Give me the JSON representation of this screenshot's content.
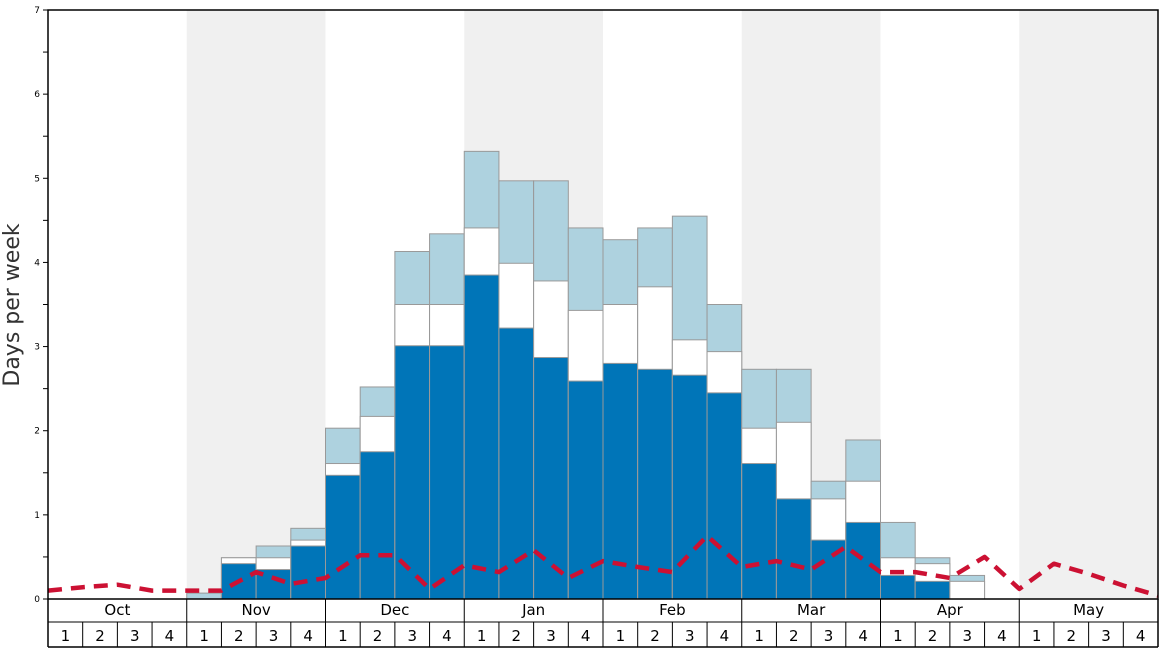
{
  "chart_data": {
    "type": "bar",
    "title": "",
    "ylabel": "Days per week",
    "ylim": [
      0,
      7
    ],
    "yticks": [
      0,
      1,
      2,
      3,
      4,
      5,
      6,
      7
    ],
    "months": [
      "Oct",
      "Nov",
      "Dec",
      "Jan",
      "Feb",
      "Mar",
      "Apr",
      "May"
    ],
    "weeks_per_month": [
      "1",
      "2",
      "3",
      "4"
    ],
    "shaded_months": [
      "Nov",
      "Jan",
      "Mar",
      "May"
    ],
    "colors": {
      "dark": "#0075b8",
      "mid": "#ffffff",
      "light": "#aed2df",
      "line": "#cc1133",
      "shade": "#f0f0f0",
      "bar_border": "#999999"
    },
    "series": [
      {
        "key": "dark",
        "values": [
          0,
          0,
          0,
          0,
          0,
          0.42,
          0.35,
          0.63,
          1.47,
          1.75,
          3.01,
          3.01,
          3.85,
          3.22,
          2.87,
          2.59,
          2.8,
          2.73,
          2.66,
          2.45,
          1.61,
          1.19,
          0.7,
          0.91,
          0.28,
          0.21,
          0,
          0,
          0,
          0,
          0,
          0
        ]
      },
      {
        "key": "mid",
        "values": [
          0,
          0,
          0,
          0,
          0,
          0.49,
          0.49,
          0.7,
          1.61,
          2.17,
          3.5,
          3.5,
          4.41,
          3.99,
          3.78,
          3.43,
          3.5,
          3.71,
          3.08,
          2.94,
          2.03,
          2.1,
          1.19,
          1.4,
          0.49,
          0.42,
          0.21,
          0,
          0,
          0,
          0,
          0
        ]
      },
      {
        "key": "light",
        "values": [
          0,
          0,
          0,
          0,
          0.07,
          0.49,
          0.63,
          0.84,
          2.03,
          2.52,
          4.13,
          4.34,
          5.32,
          4.97,
          4.97,
          4.41,
          4.27,
          4.41,
          4.55,
          3.5,
          2.73,
          2.73,
          1.4,
          1.89,
          0.91,
          0.49,
          0.28,
          0,
          0,
          0,
          0,
          0
        ]
      },
      {
        "key": "line",
        "values": [
          0.1,
          0.14,
          0.17,
          0.1,
          0.1,
          0.1,
          0.32,
          0.18,
          0.25,
          0.52,
          0.52,
          0.12,
          0.4,
          0.32,
          0.58,
          0.25,
          0.45,
          0.38,
          0.32,
          0.75,
          0.38,
          0.45,
          0.35,
          0.62,
          0.32,
          0.32,
          0.25,
          0.5,
          0.12,
          0.42,
          0.3,
          0.16,
          0.04
        ]
      }
    ]
  }
}
